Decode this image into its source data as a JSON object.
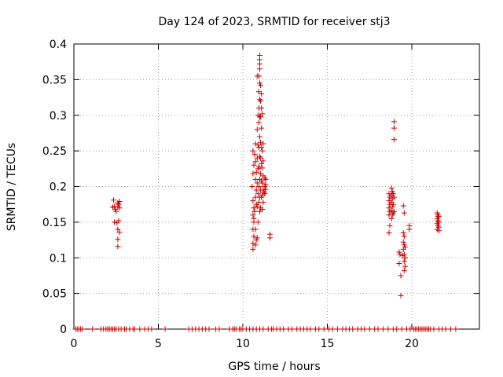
{
  "chart_data": {
    "type": "scatter",
    "title": "Day 124 of 2023, SRMTID for receiver stj3",
    "xlabel": "GPS time / hours",
    "ylabel": "SRMTID / TECUs",
    "xlim": [
      0,
      24
    ],
    "ylim": [
      0,
      0.4
    ],
    "grid": true,
    "marker": "+",
    "series_color": "#cc0000",
    "x_ticks": [
      {
        "value": 0,
        "label": "0"
      },
      {
        "value": 5,
        "label": "5"
      },
      {
        "value": 10,
        "label": "10"
      },
      {
        "value": 15,
        "label": "15"
      },
      {
        "value": 20,
        "label": "20"
      }
    ],
    "y_ticks": [
      {
        "value": 0,
        "label": "0"
      },
      {
        "value": 0.05,
        "label": "0.05"
      },
      {
        "value": 0.1,
        "label": "0.1"
      },
      {
        "value": 0.15,
        "label": "0.15"
      },
      {
        "value": 0.2,
        "label": "0.2"
      },
      {
        "value": 0.25,
        "label": "0.25"
      },
      {
        "value": 0.3,
        "label": "0.3"
      },
      {
        "value": 0.35,
        "label": "0.35"
      },
      {
        "value": 0.4,
        "label": "0.4"
      }
    ],
    "series": [
      {
        "name": "SRMTID",
        "points": [
          [
            2.35,
            0.181
          ],
          [
            2.3,
            0.171
          ],
          [
            2.4,
            0.172
          ],
          [
            2.45,
            0.168
          ],
          [
            2.5,
            0.165
          ],
          [
            2.4,
            0.15
          ],
          [
            2.55,
            0.149
          ],
          [
            2.6,
            0.177
          ],
          [
            2.65,
            0.175
          ],
          [
            2.7,
            0.179
          ],
          [
            2.6,
            0.172
          ],
          [
            2.7,
            0.17
          ],
          [
            2.65,
            0.152
          ],
          [
            2.6,
            0.14
          ],
          [
            2.7,
            0.136
          ],
          [
            2.6,
            0.126
          ],
          [
            2.6,
            0.116
          ],
          [
            10.6,
            0.25
          ],
          [
            10.65,
            0.23
          ],
          [
            10.6,
            0.218
          ],
          [
            10.55,
            0.2
          ],
          [
            10.6,
            0.18
          ],
          [
            10.65,
            0.17
          ],
          [
            10.6,
            0.16
          ],
          [
            10.65,
            0.15
          ],
          [
            10.6,
            0.14
          ],
          [
            10.65,
            0.13
          ],
          [
            10.6,
            0.12
          ],
          [
            10.6,
            0.112
          ],
          [
            10.65,
            0.155
          ],
          [
            10.7,
            0.165
          ],
          [
            10.7,
            0.245
          ],
          [
            10.75,
            0.26
          ],
          [
            10.75,
            0.235
          ],
          [
            10.8,
            0.22
          ],
          [
            10.75,
            0.21
          ],
          [
            10.8,
            0.195
          ],
          [
            10.75,
            0.185
          ],
          [
            10.8,
            0.175
          ],
          [
            10.75,
            0.14
          ],
          [
            10.8,
            0.125
          ],
          [
            10.75,
            0.118
          ],
          [
            10.85,
            0.355
          ],
          [
            10.9,
            0.3
          ],
          [
            10.85,
            0.28
          ],
          [
            10.9,
            0.258
          ],
          [
            10.85,
            0.24
          ],
          [
            10.9,
            0.225
          ],
          [
            10.85,
            0.205
          ],
          [
            10.9,
            0.19
          ],
          [
            10.85,
            0.172
          ],
          [
            10.9,
            0.15
          ],
          [
            10.85,
            0.128
          ],
          [
            10.95,
            0.355
          ],
          [
            11.0,
            0.345
          ],
          [
            10.95,
            0.333
          ],
          [
            11.0,
            0.322
          ],
          [
            10.95,
            0.31
          ],
          [
            11.0,
            0.298
          ],
          [
            10.95,
            0.29
          ],
          [
            11.0,
            0.27
          ],
          [
            10.95,
            0.255
          ],
          [
            11.0,
            0.242
          ],
          [
            10.95,
            0.228
          ],
          [
            11.0,
            0.21
          ],
          [
            10.95,
            0.2
          ],
          [
            11.0,
            0.185
          ],
          [
            10.95,
            0.178
          ],
          [
            11.0,
            0.165
          ],
          [
            11.0,
            0.384
          ],
          [
            11.0,
            0.378
          ],
          [
            11.0,
            0.372
          ],
          [
            11.0,
            0.365
          ],
          [
            11.05,
            0.342
          ],
          [
            11.1,
            0.33
          ],
          [
            11.05,
            0.32
          ],
          [
            11.1,
            0.31
          ],
          [
            11.05,
            0.298
          ],
          [
            11.1,
            0.282
          ],
          [
            11.05,
            0.262
          ],
          [
            11.1,
            0.255
          ],
          [
            11.05,
            0.24
          ],
          [
            11.1,
            0.232
          ],
          [
            11.05,
            0.218
          ],
          [
            11.1,
            0.208
          ],
          [
            11.05,
            0.195
          ],
          [
            11.1,
            0.185
          ],
          [
            11.05,
            0.17
          ],
          [
            11.15,
            0.302
          ],
          [
            11.2,
            0.26
          ],
          [
            11.15,
            0.25
          ],
          [
            11.2,
            0.236
          ],
          [
            11.15,
            0.226
          ],
          [
            11.2,
            0.215
          ],
          [
            11.15,
            0.205
          ],
          [
            11.2,
            0.195
          ],
          [
            11.15,
            0.188
          ],
          [
            11.2,
            0.178
          ],
          [
            11.15,
            0.168
          ],
          [
            11.3,
            0.212
          ],
          [
            11.35,
            0.203
          ],
          [
            11.3,
            0.2
          ],
          [
            11.35,
            0.196
          ],
          [
            11.25,
            0.192
          ],
          [
            11.3,
            0.19
          ],
          [
            11.35,
            0.21
          ],
          [
            11.6,
            0.133
          ],
          [
            11.6,
            0.128
          ],
          [
            18.65,
            0.19
          ],
          [
            18.7,
            0.185
          ],
          [
            18.65,
            0.18
          ],
          [
            18.7,
            0.175
          ],
          [
            18.65,
            0.17
          ],
          [
            18.7,
            0.165
          ],
          [
            18.65,
            0.16
          ],
          [
            18.7,
            0.145
          ],
          [
            18.65,
            0.135
          ],
          [
            18.8,
            0.198
          ],
          [
            18.85,
            0.193
          ],
          [
            18.8,
            0.188
          ],
          [
            18.85,
            0.183
          ],
          [
            18.8,
            0.178
          ],
          [
            18.85,
            0.172
          ],
          [
            18.8,
            0.166
          ],
          [
            18.85,
            0.16
          ],
          [
            18.8,
            0.155
          ],
          [
            18.9,
            0.19
          ],
          [
            18.95,
            0.185
          ],
          [
            18.9,
            0.175
          ],
          [
            18.95,
            0.165
          ],
          [
            18.9,
            0.163
          ],
          [
            18.95,
            0.291
          ],
          [
            18.95,
            0.282
          ],
          [
            18.95,
            0.266
          ],
          [
            19.25,
            0.108
          ],
          [
            19.3,
            0.105
          ],
          [
            19.25,
            0.092
          ],
          [
            19.35,
            0.075
          ],
          [
            19.35,
            0.047
          ],
          [
            19.45,
            0.103
          ],
          [
            19.5,
            0.173
          ],
          [
            19.55,
            0.163
          ],
          [
            19.5,
            0.135
          ],
          [
            19.55,
            0.13
          ],
          [
            19.5,
            0.122
          ],
          [
            19.55,
            0.118
          ],
          [
            19.5,
            0.112
          ],
          [
            19.55,
            0.105
          ],
          [
            19.6,
            0.1
          ],
          [
            19.55,
            0.095
          ],
          [
            19.6,
            0.088
          ],
          [
            19.55,
            0.082
          ],
          [
            19.6,
            0.115
          ],
          [
            19.85,
            0.145
          ],
          [
            19.85,
            0.14
          ],
          [
            21.5,
            0.163
          ],
          [
            21.55,
            0.16
          ],
          [
            21.6,
            0.158
          ],
          [
            21.5,
            0.155
          ],
          [
            21.55,
            0.152
          ],
          [
            21.6,
            0.15
          ],
          [
            21.5,
            0.148
          ],
          [
            21.55,
            0.145
          ],
          [
            21.6,
            0.143
          ],
          [
            21.5,
            0.14
          ],
          [
            21.6,
            0.138
          ],
          [
            21.55,
            0.158
          ],
          [
            0.1,
            0
          ],
          [
            0.2,
            0
          ],
          [
            0.3,
            0
          ],
          [
            0.4,
            0
          ],
          [
            0.5,
            0
          ],
          [
            1.1,
            0
          ],
          [
            1.6,
            0
          ],
          [
            1.75,
            0
          ],
          [
            1.9,
            0
          ],
          [
            2.0,
            0
          ],
          [
            2.1,
            0
          ],
          [
            2.2,
            0
          ],
          [
            2.3,
            0
          ],
          [
            2.4,
            0
          ],
          [
            2.5,
            0
          ],
          [
            2.65,
            0
          ],
          [
            2.8,
            0
          ],
          [
            3.0,
            0
          ],
          [
            3.1,
            0
          ],
          [
            3.3,
            0
          ],
          [
            3.5,
            0
          ],
          [
            3.6,
            0
          ],
          [
            3.9,
            0
          ],
          [
            4.2,
            0
          ],
          [
            4.4,
            0
          ],
          [
            4.6,
            0
          ],
          [
            5.4,
            0
          ],
          [
            6.8,
            0
          ],
          [
            7.0,
            0
          ],
          [
            7.2,
            0
          ],
          [
            7.4,
            0
          ],
          [
            7.6,
            0
          ],
          [
            7.8,
            0
          ],
          [
            8.0,
            0
          ],
          [
            8.4,
            0
          ],
          [
            8.6,
            0
          ],
          [
            9.2,
            0
          ],
          [
            9.4,
            0
          ],
          [
            9.5,
            0
          ],
          [
            9.6,
            0
          ],
          [
            9.8,
            0
          ],
          [
            9.9,
            0
          ],
          [
            10.0,
            0
          ],
          [
            10.2,
            0
          ],
          [
            10.4,
            0
          ],
          [
            10.6,
            0
          ],
          [
            10.8,
            0
          ],
          [
            11.0,
            0
          ],
          [
            11.2,
            0
          ],
          [
            11.5,
            0
          ],
          [
            11.7,
            0
          ],
          [
            11.8,
            0
          ],
          [
            12.0,
            0
          ],
          [
            12.2,
            0
          ],
          [
            12.4,
            0
          ],
          [
            12.7,
            0
          ],
          [
            12.9,
            0
          ],
          [
            13.2,
            0
          ],
          [
            13.4,
            0
          ],
          [
            13.6,
            0
          ],
          [
            13.8,
            0
          ],
          [
            14.0,
            0
          ],
          [
            14.3,
            0
          ],
          [
            14.5,
            0
          ],
          [
            14.8,
            0
          ],
          [
            15.1,
            0
          ],
          [
            15.3,
            0
          ],
          [
            15.6,
            0
          ],
          [
            15.9,
            0
          ],
          [
            16.1,
            0
          ],
          [
            16.3,
            0
          ],
          [
            16.5,
            0
          ],
          [
            16.8,
            0
          ],
          [
            17.0,
            0
          ],
          [
            17.2,
            0
          ],
          [
            17.5,
            0
          ],
          [
            17.8,
            0
          ],
          [
            18.0,
            0
          ],
          [
            18.3,
            0
          ],
          [
            18.6,
            0
          ],
          [
            18.9,
            0
          ],
          [
            19.1,
            0
          ],
          [
            19.4,
            0
          ],
          [
            19.7,
            0
          ],
          [
            19.9,
            0
          ],
          [
            20.1,
            0
          ],
          [
            20.2,
            0
          ],
          [
            20.3,
            0
          ],
          [
            20.4,
            0
          ],
          [
            20.5,
            0
          ],
          [
            20.6,
            0
          ],
          [
            20.7,
            0
          ],
          [
            20.8,
            0
          ],
          [
            20.9,
            0
          ],
          [
            21.0,
            0
          ],
          [
            21.1,
            0
          ],
          [
            21.3,
            0
          ],
          [
            21.6,
            0
          ],
          [
            21.8,
            0
          ],
          [
            22.0,
            0
          ],
          [
            22.3,
            0
          ],
          [
            22.6,
            0
          ]
        ]
      }
    ]
  }
}
